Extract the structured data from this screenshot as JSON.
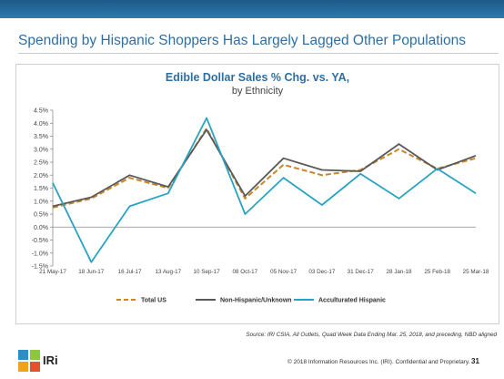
{
  "slide": {
    "title": "Spending by Hispanic Shoppers Has Largely Lagged Other Populations",
    "source_note": "Source: IRI CSIA, All Outlets, Quad Week Data Ending Mar. 25, 2018, and preceding, NBD aligned",
    "footer_text": "© 2018 Information Resources Inc. (IRI). Confidential and Proprietary.",
    "page_number": "31",
    "logo_text": "IRi"
  },
  "colors": {
    "header_bar": "#1f639a",
    "title": "#2e6fa3",
    "total_us": "#c9862a",
    "non_hispanic": "#595959",
    "acculturated_hispanic": "#2aa3c3",
    "zero_line": "#8c8c8c"
  },
  "chart_data": {
    "type": "line",
    "title": "Edible Dollar Sales % Chg. vs. YA,",
    "subtitle": "by Ethnicity",
    "x_labels": [
      "21 May-17",
      "18 Jun-17",
      "16 Jul-17",
      "13 Aug-17",
      "10 Sep-17",
      "08 Oct-17",
      "05 Nov-17",
      "03 Dec-17",
      "31 Dec-17",
      "28 Jan-18",
      "25 Feb-18",
      "25 Mar-18"
    ],
    "y_ticks": [
      "-1.5%",
      "-1.0%",
      "-0.5%",
      "0.0%",
      "0.5%",
      "1.0%",
      "1.5%",
      "2.0%",
      "2.5%",
      "3.0%",
      "3.5%",
      "4.0%",
      "4.5%"
    ],
    "ylim": [
      -1.5,
      4.5
    ],
    "y_unit": "%",
    "grid": false,
    "legend_position": "bottom",
    "series": [
      {
        "name": "Total US",
        "style": "dashed",
        "color": "#c9862a",
        "values": [
          0.75,
          1.1,
          1.9,
          1.5,
          3.8,
          1.1,
          2.4,
          2.0,
          2.2,
          3.0,
          2.25,
          2.65
        ]
      },
      {
        "name": "Non-Hispanic/Unknown",
        "style": "solid",
        "color": "#595959",
        "values": [
          0.8,
          1.15,
          2.0,
          1.55,
          3.75,
          1.2,
          2.65,
          2.2,
          2.15,
          3.2,
          2.2,
          2.75
        ]
      },
      {
        "name": "Acculturated Hispanic",
        "style": "solid",
        "color": "#2aa3c3",
        "values": [
          1.7,
          -1.35,
          0.8,
          1.3,
          4.2,
          0.5,
          1.9,
          0.85,
          2.05,
          1.1,
          2.25,
          1.3
        ]
      }
    ]
  }
}
